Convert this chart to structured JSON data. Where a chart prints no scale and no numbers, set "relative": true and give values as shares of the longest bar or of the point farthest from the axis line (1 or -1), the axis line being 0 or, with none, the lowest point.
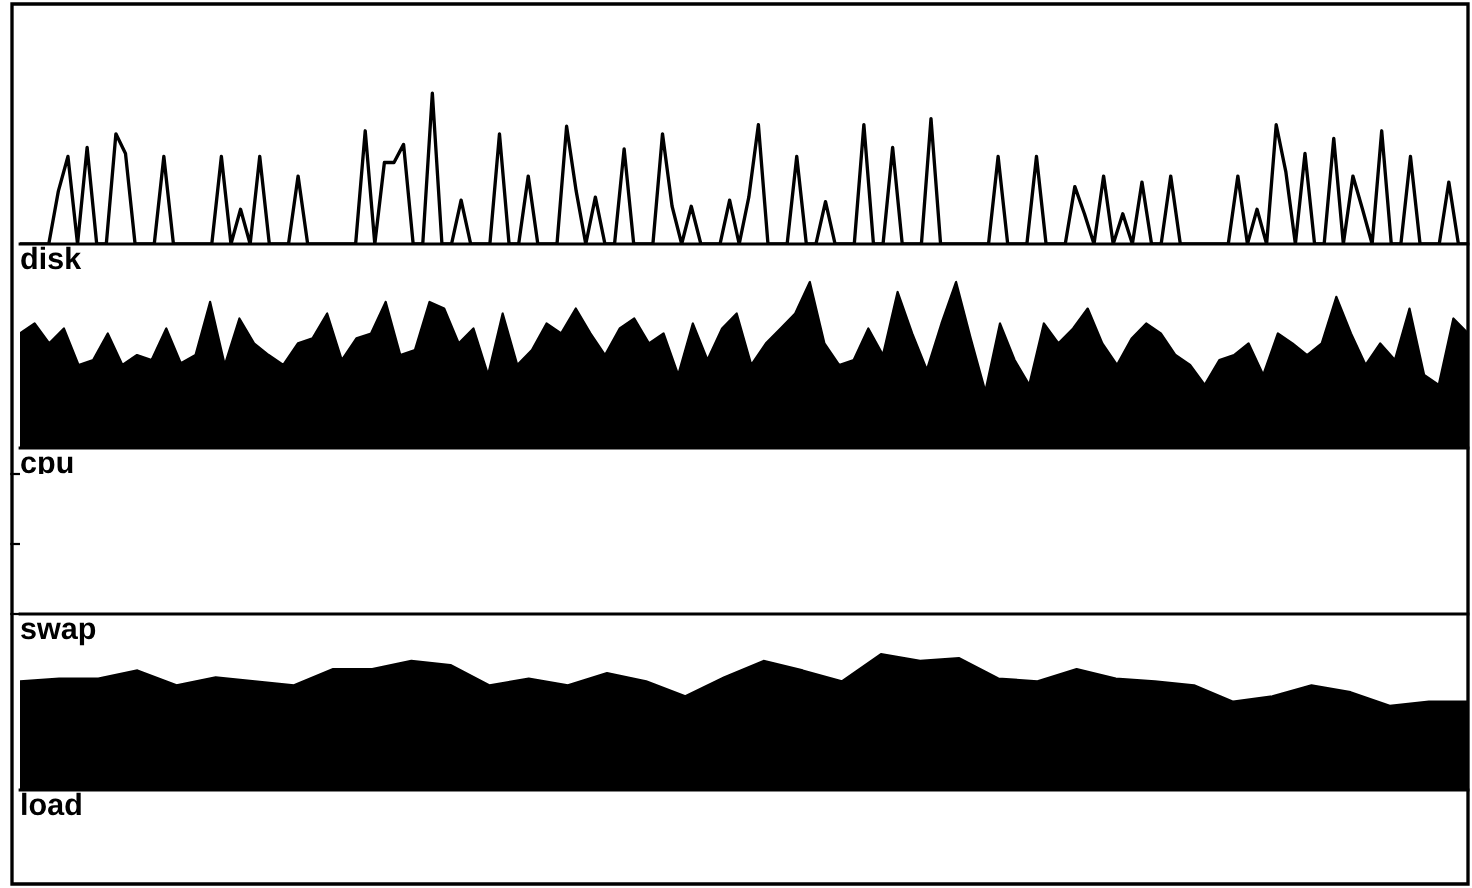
{
  "chart_data": [
    {
      "type": "line",
      "xlabel": "disk",
      "relative": true,
      "color": "#000000",
      "categories": [
        null,
        null,
        null,
        null,
        null,
        null,
        null,
        null,
        null,
        null,
        null,
        null,
        null,
        null,
        null,
        null,
        null,
        null,
        null,
        null,
        null,
        null,
        null,
        null,
        null,
        null,
        null,
        null,
        null,
        null,
        null,
        null,
        null,
        null,
        null,
        null,
        null,
        null,
        null,
        null,
        null,
        null,
        null,
        null,
        null,
        null,
        null,
        null,
        null,
        null,
        null,
        null,
        null,
        null,
        null,
        null,
        null,
        null,
        null,
        null,
        null,
        null,
        null,
        null,
        null,
        null,
        null,
        null,
        null,
        null,
        null,
        null,
        null,
        null,
        null,
        null,
        null,
        null,
        null,
        null,
        null,
        null,
        null,
        null,
        null,
        null,
        null,
        null,
        null,
        null,
        null,
        null,
        null,
        null,
        null,
        null,
        null,
        null,
        null,
        null,
        null,
        null,
        null,
        null,
        null,
        null,
        null,
        null,
        null,
        null,
        null,
        null,
        null,
        null,
        null,
        null,
        null,
        null,
        null,
        null,
        null,
        null,
        null,
        null,
        null,
        null,
        null,
        null,
        null,
        null,
        null,
        null,
        null,
        null,
        null,
        null,
        null,
        null,
        null,
        null,
        null,
        null,
        null,
        null,
        null,
        null,
        null,
        null,
        null,
        null,
        null,
        null
      ],
      "values": [
        0,
        0,
        0,
        0,
        0.35,
        0.58,
        0,
        0.64,
        0,
        0,
        0.73,
        0.6,
        0,
        0,
        0,
        0.58,
        0,
        0,
        0,
        0,
        0,
        0.58,
        0,
        0.23,
        0,
        0.58,
        0,
        0,
        0,
        0.45,
        0,
        0,
        0,
        0,
        0,
        0,
        0.75,
        0,
        0.54,
        0.54,
        0.66,
        0,
        0,
        1,
        0,
        0,
        0.29,
        0,
        0,
        0,
        0.73,
        0,
        0,
        0.45,
        0,
        0,
        0,
        0.78,
        0.35,
        0,
        0.31,
        0,
        0,
        0.63,
        0,
        0,
        0,
        0.73,
        0.25,
        0,
        0.25,
        0,
        0,
        0,
        0.29,
        0,
        0.31,
        0.79,
        0,
        0,
        0,
        0.58,
        0,
        0,
        0.28,
        0,
        0,
        0,
        0.79,
        0,
        0,
        0.64,
        0,
        0,
        0,
        0.83,
        0,
        0,
        0,
        0,
        0,
        0,
        0.58,
        0,
        0,
        0,
        0.58,
        0,
        0,
        0,
        0.38,
        0.2,
        0,
        0.45,
        0,
        0.2,
        0,
        0.41,
        0,
        0,
        0.45,
        0,
        0,
        0,
        0,
        0,
        0,
        0.45,
        0,
        0.23,
        0,
        0.79,
        0.48,
        0,
        0.6,
        0,
        0,
        0.7,
        0,
        0.45,
        0.23,
        0,
        0.75,
        0,
        0,
        0.58,
        0,
        0,
        0,
        0.41,
        0,
        0
      ]
    },
    {
      "type": "area",
      "xlabel": "cpu",
      "relative": true,
      "color": "#000000",
      "categories": [
        null,
        null,
        null,
        null,
        null,
        null,
        null,
        null,
        null,
        null,
        null,
        null,
        null,
        null,
        null,
        null,
        null,
        null,
        null,
        null,
        null,
        null,
        null,
        null,
        null,
        null,
        null,
        null,
        null,
        null,
        null,
        null,
        null,
        null,
        null,
        null,
        null,
        null,
        null,
        null,
        null,
        null,
        null,
        null,
        null,
        null,
        null,
        null,
        null,
        null,
        null,
        null,
        null,
        null,
        null,
        null,
        null,
        null,
        null,
        null,
        null,
        null,
        null,
        null,
        null,
        null,
        null,
        null,
        null,
        null,
        null,
        null,
        null,
        null,
        null,
        null,
        null,
        null,
        null,
        null,
        null,
        null,
        null,
        null,
        null,
        null,
        null,
        null,
        null,
        null,
        null,
        null,
        null,
        null,
        null,
        null,
        null,
        null,
        null,
        null
      ],
      "values": [
        0.69,
        0.75,
        0.63,
        0.72,
        0.5,
        0.53,
        0.69,
        0.5,
        0.56,
        0.53,
        0.72,
        0.51,
        0.56,
        0.88,
        0.5,
        0.78,
        0.63,
        0.56,
        0.5,
        0.63,
        0.66,
        0.81,
        0.53,
        0.66,
        0.69,
        0.88,
        0.56,
        0.59,
        0.88,
        0.84,
        0.63,
        0.72,
        0.44,
        0.81,
        0.5,
        0.59,
        0.75,
        0.69,
        0.84,
        0.69,
        0.56,
        0.72,
        0.78,
        0.63,
        0.69,
        0.44,
        0.75,
        0.53,
        0.72,
        0.81,
        0.5,
        0.63,
        0.72,
        0.81,
        1,
        0.63,
        0.5,
        0.53,
        0.72,
        0.56,
        0.94,
        0.69,
        0.47,
        0.75,
        1,
        0.66,
        0.34,
        0.75,
        0.53,
        0.38,
        0.75,
        0.63,
        0.72,
        0.84,
        0.63,
        0.5,
        0.66,
        0.75,
        0.69,
        0.56,
        0.5,
        0.38,
        0.53,
        0.56,
        0.63,
        0.44,
        0.69,
        0.63,
        0.56,
        0.63,
        0.91,
        0.69,
        0.5,
        0.63,
        0.53,
        0.84,
        0.44,
        0.38,
        0.78,
        0.69
      ]
    },
    {
      "type": "other",
      "xlabel": "swap"
    },
    {
      "type": "area",
      "xlabel": "load",
      "relative": true,
      "color": "#000000",
      "categories": [
        null,
        null,
        null,
        null,
        null,
        null,
        null,
        null,
        null,
        null,
        null,
        null,
        null,
        null,
        null,
        null,
        null,
        null,
        null,
        null,
        null,
        null,
        null,
        null,
        null,
        null,
        null,
        null,
        null,
        null,
        null,
        null,
        null,
        null,
        null,
        null,
        null,
        null
      ],
      "values": [
        0.8,
        0.82,
        0.82,
        0.88,
        0.77,
        0.83,
        0.8,
        0.77,
        0.89,
        0.89,
        0.95,
        0.92,
        0.77,
        0.82,
        0.77,
        0.86,
        0.8,
        0.69,
        0.83,
        0.95,
        0.88,
        0.8,
        1,
        0.95,
        0.97,
        0.82,
        0.8,
        0.89,
        0.82,
        0.8,
        0.77,
        0.65,
        0.69,
        0.77,
        0.72,
        0.62,
        0.65,
        0.65
      ]
    }
  ]
}
